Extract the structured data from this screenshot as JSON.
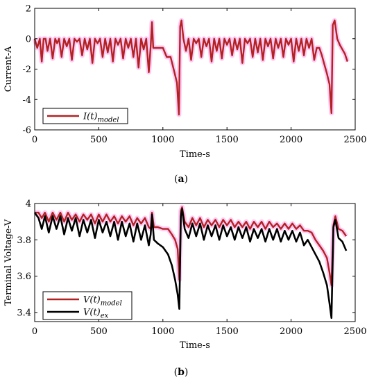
{
  "chart_data": [
    {
      "type": "line",
      "panel": "a",
      "caption": {
        "open": "(",
        "letter": "a",
        "close": ")"
      },
      "xlabel": "Time-s",
      "ylabel": "Current-A",
      "xlim": [
        0,
        2500
      ],
      "ylim": [
        -6,
        2
      ],
      "xticks": [
        "0",
        "500",
        "1000",
        "1500",
        "2000",
        "2500"
      ],
      "yticks": [
        "2",
        "0",
        "-2",
        "-4",
        "-6"
      ],
      "grid": false,
      "legend_position": "bottom-left",
      "series": [
        {
          "name": "I(t)model",
          "name_main": "I(t)",
          "name_sub": "model",
          "color": "#b22222",
          "x": [
            0,
            20,
            40,
            55,
            70,
            85,
            100,
            120,
            140,
            160,
            175,
            190,
            210,
            230,
            250,
            270,
            290,
            310,
            330,
            350,
            370,
            390,
            410,
            430,
            450,
            470,
            490,
            510,
            530,
            550,
            570,
            590,
            610,
            630,
            650,
            670,
            690,
            710,
            730,
            750,
            770,
            790,
            810,
            830,
            850,
            870,
            890,
            905,
            915,
            925,
            960,
            1000,
            1030,
            1060,
            1090,
            1110,
            1125,
            1135,
            1145,
            1160,
            1180,
            1200,
            1220,
            1240,
            1260,
            1280,
            1300,
            1320,
            1340,
            1360,
            1380,
            1400,
            1420,
            1440,
            1460,
            1480,
            1500,
            1520,
            1540,
            1560,
            1580,
            1600,
            1620,
            1640,
            1660,
            1680,
            1700,
            1720,
            1740,
            1760,
            1780,
            1800,
            1820,
            1840,
            1860,
            1880,
            1900,
            1920,
            1940,
            1960,
            1980,
            2000,
            2020,
            2040,
            2060,
            2080,
            2100,
            2120,
            2140,
            2160,
            2180,
            2200,
            2220,
            2240,
            2260,
            2280,
            2300,
            2315,
            2325,
            2340,
            2360,
            2380,
            2400,
            2420,
            2440
          ],
          "y": [
            0,
            -0.6,
            0,
            -1.5,
            0,
            0,
            -0.8,
            0,
            -1.3,
            0,
            -0.3,
            0,
            -1.2,
            0,
            -0.5,
            0,
            -1.4,
            0,
            -0.2,
            0,
            -1.1,
            0,
            -0.7,
            0,
            -1.6,
            0,
            -0.3,
            0,
            -1.2,
            0,
            -0.9,
            0,
            -1.5,
            0,
            -0.4,
            0,
            -1.3,
            0,
            -0.6,
            0,
            -1.2,
            0,
            -1.9,
            0,
            -0.7,
            0,
            -2.2,
            -0.5,
            1.1,
            -0.6,
            -0.6,
            -0.6,
            -1.2,
            -1.2,
            -2.2,
            -2.9,
            -5.0,
            0.8,
            1.2,
            0,
            -0.8,
            0,
            -1.4,
            0,
            -0.3,
            0,
            -1.2,
            0,
            -0.5,
            0,
            -1.5,
            0,
            -0.8,
            0,
            -1.3,
            0,
            -0.4,
            0,
            -1.1,
            0,
            -0.7,
            0,
            -1.6,
            0,
            -0.3,
            0,
            -1.2,
            0,
            -0.9,
            0,
            -1.4,
            0,
            -0.5,
            0,
            -1.3,
            0,
            -0.6,
            0,
            -1.2,
            0,
            -0.4,
            0,
            -1.5,
            0,
            -0.8,
            0,
            -1.1,
            0,
            -0.6,
            0,
            -1.4,
            -0.6,
            -0.6,
            -1.1,
            -1.7,
            -2.3,
            -3.0,
            -4.9,
            0.9,
            1.2,
            0,
            -0.4,
            -0.7,
            -1.0,
            -1.5
          ]
        }
      ]
    },
    {
      "type": "line",
      "panel": "b",
      "caption": {
        "open": "(",
        "letter": "b",
        "close": ")"
      },
      "xlabel": "Time-s",
      "ylabel": "Terminal Voltage-V",
      "xlim": [
        0,
        2500
      ],
      "ylim": [
        3.35,
        4.0
      ],
      "xticks": [
        "0",
        "500",
        "1000",
        "1500",
        "2000",
        "2500"
      ],
      "yticks": [
        "4",
        "3.8",
        "3.6",
        "3.4"
      ],
      "grid": false,
      "legend_position": "bottom-left",
      "series": [
        {
          "name": "V(t)model",
          "name_main": "V(t)",
          "name_sub": "model",
          "color": "#b22222",
          "x": [
            0,
            30,
            55,
            80,
            110,
            140,
            170,
            200,
            230,
            260,
            290,
            320,
            350,
            380,
            410,
            440,
            470,
            500,
            530,
            560,
            590,
            620,
            650,
            680,
            710,
            740,
            770,
            800,
            830,
            860,
            890,
            905,
            915,
            930,
            960,
            1000,
            1040,
            1070,
            1095,
            1115,
            1128,
            1140,
            1150,
            1170,
            1200,
            1230,
            1260,
            1290,
            1320,
            1350,
            1380,
            1410,
            1440,
            1470,
            1500,
            1530,
            1560,
            1590,
            1620,
            1650,
            1680,
            1710,
            1740,
            1770,
            1800,
            1830,
            1860,
            1890,
            1920,
            1950,
            1980,
            2010,
            2040,
            2070,
            2100,
            2130,
            2160,
            2190,
            2220,
            2250,
            2280,
            2300,
            2315,
            2330,
            2345,
            2370,
            2400,
            2430
          ],
          "y": [
            3.95,
            3.95,
            3.92,
            3.95,
            3.9,
            3.95,
            3.91,
            3.95,
            3.9,
            3.95,
            3.91,
            3.94,
            3.9,
            3.94,
            3.91,
            3.94,
            3.89,
            3.94,
            3.9,
            3.94,
            3.9,
            3.93,
            3.89,
            3.93,
            3.9,
            3.93,
            3.88,
            3.92,
            3.89,
            3.92,
            3.87,
            3.86,
            3.95,
            3.87,
            3.87,
            3.86,
            3.86,
            3.83,
            3.8,
            3.75,
            3.58,
            3.96,
            3.98,
            3.9,
            3.87,
            3.92,
            3.88,
            3.92,
            3.87,
            3.91,
            3.88,
            3.91,
            3.87,
            3.91,
            3.88,
            3.91,
            3.87,
            3.9,
            3.87,
            3.9,
            3.86,
            3.9,
            3.87,
            3.9,
            3.86,
            3.9,
            3.87,
            3.89,
            3.86,
            3.89,
            3.86,
            3.89,
            3.86,
            3.88,
            3.85,
            3.85,
            3.84,
            3.8,
            3.77,
            3.74,
            3.7,
            3.62,
            3.55,
            3.88,
            3.93,
            3.86,
            3.85,
            3.82
          ]
        },
        {
          "name": "V(t)ex",
          "name_main": "V(t)",
          "name_sub": "ex",
          "color": "#000000",
          "x": [
            0,
            30,
            55,
            80,
            110,
            140,
            170,
            200,
            230,
            260,
            290,
            320,
            350,
            380,
            410,
            440,
            470,
            500,
            530,
            560,
            590,
            620,
            650,
            680,
            710,
            740,
            770,
            800,
            830,
            860,
            890,
            905,
            915,
            930,
            960,
            1000,
            1040,
            1070,
            1095,
            1115,
            1128,
            1140,
            1150,
            1170,
            1200,
            1230,
            1260,
            1290,
            1320,
            1350,
            1380,
            1410,
            1440,
            1470,
            1500,
            1530,
            1560,
            1590,
            1620,
            1650,
            1680,
            1710,
            1740,
            1770,
            1800,
            1830,
            1860,
            1890,
            1920,
            1950,
            1980,
            2010,
            2040,
            2070,
            2100,
            2130,
            2160,
            2190,
            2220,
            2250,
            2280,
            2300,
            2315,
            2330,
            2345,
            2370,
            2400,
            2430
          ],
          "y": [
            3.95,
            3.92,
            3.86,
            3.93,
            3.84,
            3.93,
            3.86,
            3.93,
            3.83,
            3.92,
            3.85,
            3.92,
            3.82,
            3.91,
            3.84,
            3.91,
            3.81,
            3.91,
            3.84,
            3.9,
            3.82,
            3.9,
            3.8,
            3.9,
            3.82,
            3.89,
            3.79,
            3.89,
            3.8,
            3.88,
            3.77,
            3.83,
            3.94,
            3.8,
            3.78,
            3.76,
            3.72,
            3.66,
            3.58,
            3.5,
            3.42,
            3.93,
            3.97,
            3.86,
            3.81,
            3.89,
            3.82,
            3.89,
            3.8,
            3.88,
            3.82,
            3.88,
            3.8,
            3.88,
            3.82,
            3.87,
            3.8,
            3.87,
            3.81,
            3.87,
            3.79,
            3.86,
            3.81,
            3.86,
            3.79,
            3.86,
            3.8,
            3.86,
            3.79,
            3.85,
            3.8,
            3.85,
            3.79,
            3.84,
            3.77,
            3.8,
            3.76,
            3.72,
            3.68,
            3.62,
            3.55,
            3.45,
            3.37,
            3.87,
            3.91,
            3.81,
            3.79,
            3.74
          ]
        }
      ]
    }
  ]
}
